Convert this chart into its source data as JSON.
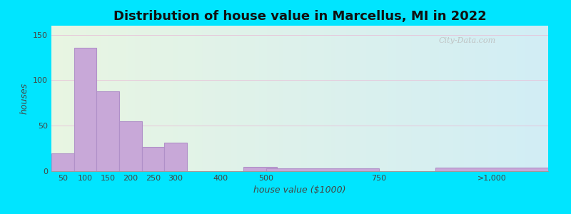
{
  "title": "Distribution of house value in Marcellus, MI in 2022",
  "xlabel": "house value ($1000)",
  "ylabel": "houses",
  "bar_centers": [
    50,
    100,
    150,
    200,
    250,
    300,
    450,
    525,
    625,
    875
  ],
  "bar_widths": [
    50,
    50,
    50,
    50,
    50,
    50,
    100,
    50,
    250,
    250
  ],
  "bar_values": [
    20,
    136,
    88,
    55,
    27,
    31,
    0,
    5,
    3,
    4
  ],
  "xtick_positions": [
    50,
    100,
    150,
    200,
    250,
    300,
    400,
    500,
    750,
    1000
  ],
  "xtick_labels": [
    "50",
    "100",
    "150",
    "200",
    "250",
    "300",
    "400",
    "500",
    "750",
    ">1,000"
  ],
  "bar_color": "#c8a8d8",
  "bar_edgecolor": "#b090c8",
  "ylim": [
    0,
    160
  ],
  "yticks": [
    0,
    50,
    100,
    150
  ],
  "xlim": [
    25,
    1125
  ],
  "background_outer": "#00e5ff",
  "background_left_color": "#e8f5e2",
  "background_right_color": "#d0eef5",
  "title_fontsize": 13,
  "axis_label_fontsize": 9,
  "tick_fontsize": 8,
  "watermark_text": "City-Data.com",
  "grid_color": "#e8c0d8",
  "grid_linewidth": 0.6
}
